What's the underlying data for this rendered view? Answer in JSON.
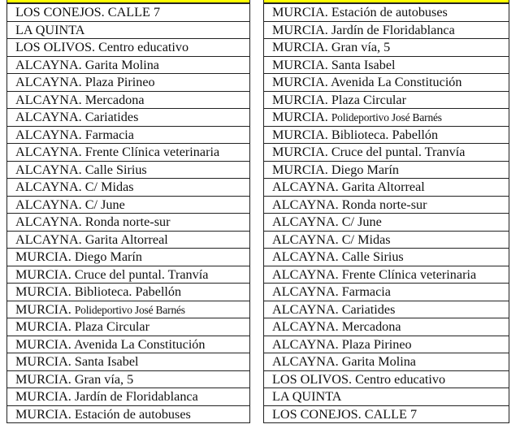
{
  "colors": {
    "header_strip": "#ffff00",
    "border": "#222222"
  },
  "left": [
    {
      "prefix": "LOS CONEJOS. CALLE 7",
      "rest": ""
    },
    {
      "prefix": "LA QUINTA",
      "rest": ""
    },
    {
      "prefix": "LOS OLIVOS. Centro educativo",
      "rest": ""
    },
    {
      "prefix": "ALCAYNA. Garita Molina",
      "rest": ""
    },
    {
      "prefix": "ALCAYNA. Plaza Pirineo",
      "rest": ""
    },
    {
      "prefix": "ALCAYNA. Mercadona",
      "rest": ""
    },
    {
      "prefix": "ALCAYNA. Cariatides",
      "rest": ""
    },
    {
      "prefix": "ALCAYNA. Farmacia",
      "rest": ""
    },
    {
      "prefix": "ALCAYNA. Frente Clínica veterinaria",
      "rest": ""
    },
    {
      "prefix": "ALCAYNA. Calle Sirius",
      "rest": ""
    },
    {
      "prefix": "ALCAYNA. C/ Midas",
      "rest": ""
    },
    {
      "prefix": "ALCAYNA. C/ June",
      "rest": ""
    },
    {
      "prefix": "ALCAYNA. Ronda norte-sur",
      "rest": ""
    },
    {
      "prefix": "ALCAYNA. Garita Altorreal",
      "rest": ""
    },
    {
      "prefix": "MURCIA. Diego Marín",
      "rest": ""
    },
    {
      "prefix": "MURCIA. Cruce del puntal. Tranvía",
      "rest": ""
    },
    {
      "prefix": "MURCIA. Biblioteca. Pabellón",
      "rest": ""
    },
    {
      "prefix": "MURCIA.",
      "rest": "Polideportivo José Barnés"
    },
    {
      "prefix": "MURCIA. Plaza Circular",
      "rest": ""
    },
    {
      "prefix": "MURCIA. Avenida La Constitución",
      "rest": ""
    },
    {
      "prefix": "MURCIA. Santa Isabel",
      "rest": ""
    },
    {
      "prefix": "MURCIA. Gran vía, 5",
      "rest": ""
    },
    {
      "prefix": "MURCIA. Jardín de Floridablanca",
      "rest": ""
    },
    {
      "prefix": "MURCIA. Estación de autobuses",
      "rest": ""
    }
  ],
  "right": [
    {
      "prefix": "MURCIA. Estación de autobuses",
      "rest": ""
    },
    {
      "prefix": "MURCIA. Jardín de Floridablanca",
      "rest": ""
    },
    {
      "prefix": "MURCIA. Gran vía, 5",
      "rest": ""
    },
    {
      "prefix": "MURCIA. Santa Isabel",
      "rest": ""
    },
    {
      "prefix": "MURCIA. Avenida La Constitución",
      "rest": ""
    },
    {
      "prefix": "MURCIA. Plaza Circular",
      "rest": ""
    },
    {
      "prefix": "MURCIA.",
      "rest": "Polideportivo José Barnés"
    },
    {
      "prefix": "MURCIA. Biblioteca. Pabellón",
      "rest": ""
    },
    {
      "prefix": "MURCIA. Cruce del puntal. Tranvía",
      "rest": ""
    },
    {
      "prefix": "MURCIA. Diego Marín",
      "rest": ""
    },
    {
      "prefix": "ALCAYNA. Garita Altorreal",
      "rest": ""
    },
    {
      "prefix": "ALCAYNA. Ronda norte-sur",
      "rest": ""
    },
    {
      "prefix": "ALCAYNA. C/ June",
      "rest": ""
    },
    {
      "prefix": "ALCAYNA. C/ Midas",
      "rest": ""
    },
    {
      "prefix": "ALCAYNA. Calle Sirius",
      "rest": ""
    },
    {
      "prefix": "ALCAYNA. Frente Clínica veterinaria",
      "rest": ""
    },
    {
      "prefix": "ALCAYNA. Farmacia",
      "rest": ""
    },
    {
      "prefix": "ALCAYNA. Cariatides",
      "rest": ""
    },
    {
      "prefix": "ALCAYNA. Mercadona",
      "rest": ""
    },
    {
      "prefix": "ALCAYNA. Plaza Pirineo",
      "rest": ""
    },
    {
      "prefix": "ALCAYNA. Garita Molina",
      "rest": ""
    },
    {
      "prefix": "LOS OLIVOS. Centro educativo",
      "rest": ""
    },
    {
      "prefix": "LA QUINTA",
      "rest": ""
    },
    {
      "prefix": "LOS CONEJOS. CALLE 7",
      "rest": ""
    }
  ]
}
